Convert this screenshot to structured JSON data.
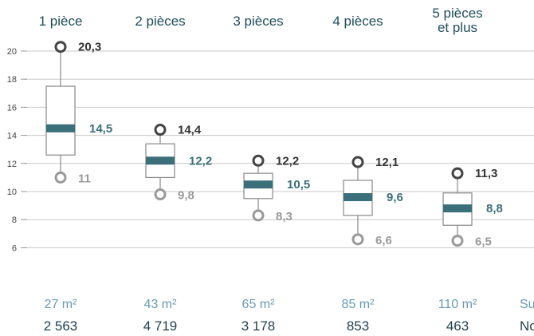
{
  "chart_data": {
    "type": "boxplot",
    "y_ticks": [
      "20",
      "18",
      "16",
      "14",
      "12",
      "10",
      "8",
      "6"
    ],
    "ylim": [
      5,
      21
    ],
    "categories": [
      {
        "label": [
          "1 pièce"
        ],
        "high": 20.3,
        "high_label": "20,3",
        "q3": 17.5,
        "median": 14.5,
        "median_label": "14,5",
        "q1": 12.6,
        "low": 11.0,
        "low_label": "11",
        "surface": "27 m²",
        "count": "2 563"
      },
      {
        "label": [
          "2 pièces"
        ],
        "high": 14.4,
        "high_label": "14,4",
        "q3": 13.4,
        "median": 12.2,
        "median_label": "12,2",
        "q1": 11.0,
        "low": 9.8,
        "low_label": "9,8",
        "surface": "43 m²",
        "count": "4 719"
      },
      {
        "label": [
          "3 pièces"
        ],
        "high": 12.2,
        "high_label": "12,2",
        "q3": 11.3,
        "median": 10.5,
        "median_label": "10,5",
        "q1": 9.5,
        "low": 8.3,
        "low_label": "8,3",
        "surface": "65 m²",
        "count": "3 178"
      },
      {
        "label": [
          "4 pièces"
        ],
        "high": 12.1,
        "high_label": "12,1",
        "q3": 10.8,
        "median": 9.6,
        "median_label": "9,6",
        "q1": 8.3,
        "low": 6.6,
        "low_label": "6,6",
        "surface": "85 m²",
        "count": "853"
      },
      {
        "label": [
          "5 pièces",
          "et plus"
        ],
        "high": 11.3,
        "high_label": "11,3",
        "q3": 9.9,
        "median": 8.8,
        "median_label": "8,8",
        "q1": 7.6,
        "low": 6.5,
        "low_label": "6,5",
        "surface": "110 m²",
        "count": "463"
      }
    ],
    "extra_row_labels": {
      "surface": "Su",
      "count": "No"
    },
    "colors": {
      "high": "#444444",
      "median": "#3b6f7a",
      "low": "#9a9a9a",
      "grid": "#c8c8c8",
      "label": "#1f4e5c",
      "surface": "#6a9bb5"
    }
  }
}
